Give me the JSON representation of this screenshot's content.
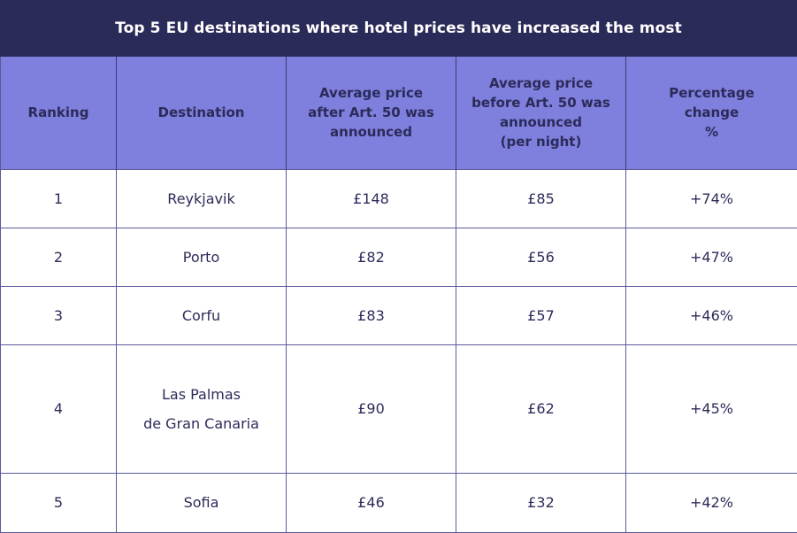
{
  "chart_data": {
    "type": "table",
    "title": "Top 5 EU destinations where hotel prices have increased the most",
    "columns": [
      "Ranking",
      "Destination",
      "Average price\nafter Art. 50 was\nannounced",
      "Average price\nbefore Art. 50 was\nannounced\n(per night)",
      "Percentage\nchange\n%"
    ],
    "rows": [
      [
        "1",
        "Reykjavik",
        "£148",
        "£85",
        "+74%"
      ],
      [
        "2",
        "Porto",
        "£82",
        "£56",
        "+47%"
      ],
      [
        "3",
        "Corfu",
        "£83",
        "£57",
        "+46%"
      ],
      [
        "4",
        "Las Palmas\nde Gran Canaria",
        "£90",
        "£62",
        "+45%"
      ],
      [
        "5",
        "Sofia",
        "£46",
        "£32",
        "+42%"
      ]
    ]
  },
  "colors": {
    "title_bg": "#2b2b5a",
    "header_bg": "#7f7fdd",
    "text": "#2b2b5a",
    "border": "#5a5a9a"
  }
}
